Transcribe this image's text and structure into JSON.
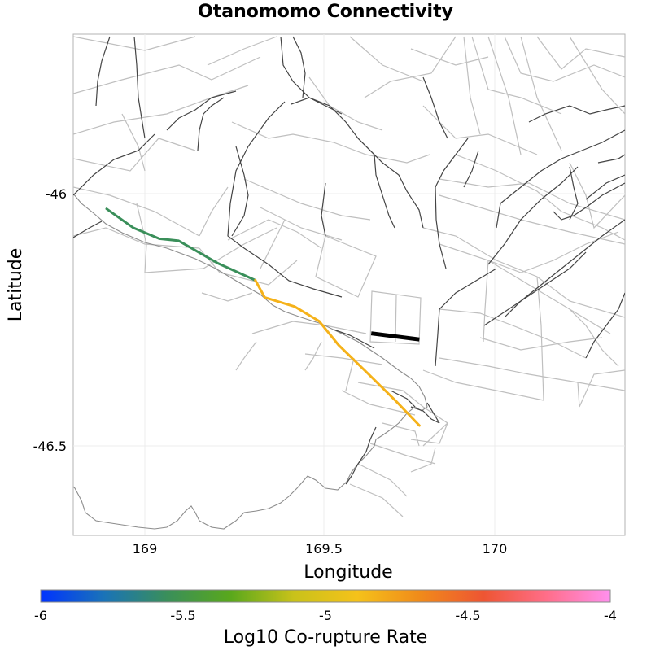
{
  "title": "Otanomomo Connectivity",
  "xaxis": {
    "label": "Longitude",
    "ticks": [
      "169",
      "169.5",
      "170"
    ]
  },
  "yaxis": {
    "label": "Latitude",
    "ticks": [
      "-46",
      "-46.5"
    ]
  },
  "colorbar": {
    "label": "Log10 Co-rupture Rate",
    "ticks": [
      "-6",
      "-5.5",
      "-5",
      "-4.5",
      "-4"
    ],
    "min": -6,
    "max": -4,
    "colors": [
      "#0033ff",
      "#1a73b8",
      "#3a8f5a",
      "#59a81c",
      "#c9c21a",
      "#f5c21a",
      "#f08a1a",
      "#ee5533",
      "#ff6e8a",
      "#ff90ee"
    ]
  },
  "chart_data": {
    "type": "map",
    "title": "Otanomomo Connectivity",
    "xlabel": "Longitude",
    "ylabel": "Latitude",
    "xlim": [
      168.8,
      170.37
    ],
    "ylim": [
      -46.68,
      -45.69
    ],
    "target_fault": {
      "name": "Otanomomo",
      "path": [
        [
          169.648,
          -46.281
        ],
        [
          169.785,
          -46.293
        ]
      ],
      "color": "#000000"
    },
    "connected_sections": [
      {
        "path": [
          [
            168.895,
            -46.035
          ],
          [
            168.97,
            -46.072
          ],
          [
            169.045,
            -46.094
          ],
          [
            169.1,
            -46.098
          ],
          [
            169.21,
            -46.142
          ],
          [
            169.318,
            -46.176
          ]
        ],
        "log10_rate": -5.6,
        "color": "#3a8f5a"
      },
      {
        "path": [
          [
            169.318,
            -46.176
          ],
          [
            169.345,
            -46.21
          ],
          [
            169.43,
            -46.228
          ],
          [
            169.5,
            -46.257
          ],
          [
            169.555,
            -46.304
          ],
          [
            169.635,
            -46.358
          ],
          [
            169.72,
            -46.416
          ],
          [
            169.785,
            -46.463
          ]
        ],
        "log10_rate": -5.0,
        "color": "#f5b21a"
      }
    ],
    "colorbar": {
      "label": "Log10 Co-rupture Rate",
      "min": -6,
      "max": -4,
      "ticks": [
        -6,
        -5.5,
        -5,
        -4.5,
        -4
      ]
    }
  }
}
